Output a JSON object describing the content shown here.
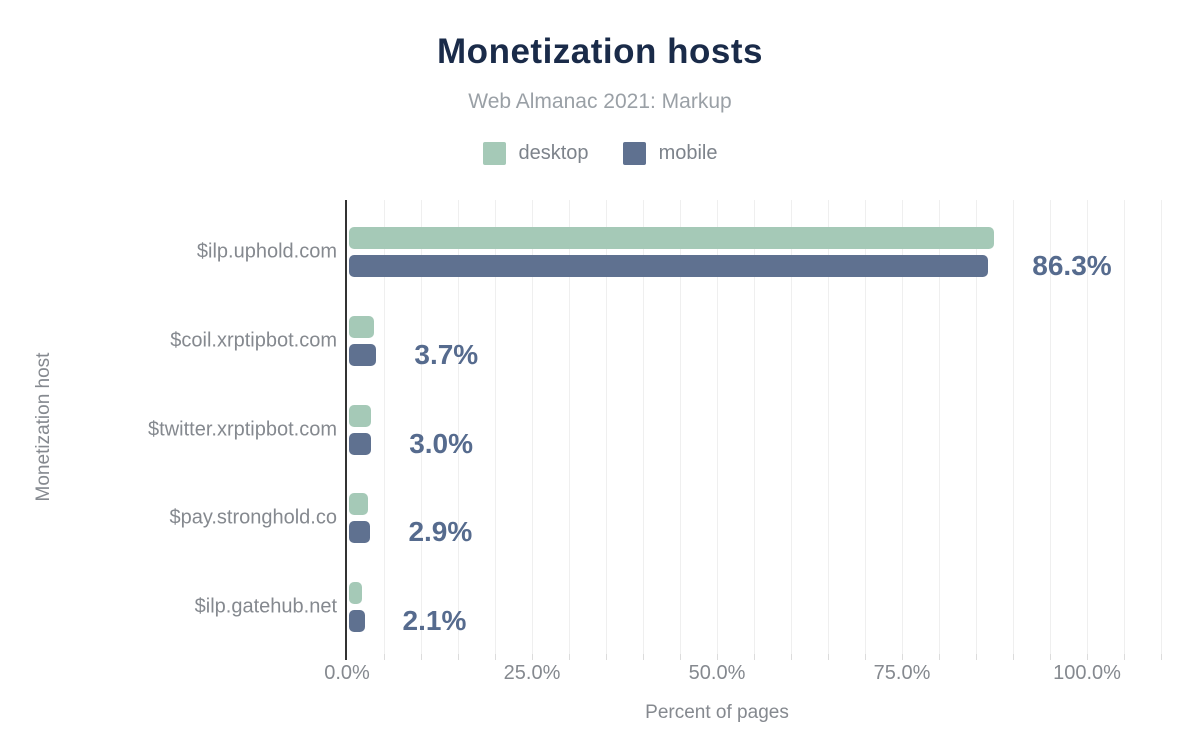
{
  "header": {
    "title": "Monetization hosts",
    "subtitle": "Web Almanac 2021: Markup"
  },
  "legend": {
    "items": [
      {
        "label": "desktop",
        "color": "#a5c9b7"
      },
      {
        "label": "mobile",
        "color": "#5f7190"
      }
    ]
  },
  "chart_data": {
    "type": "bar",
    "orientation": "horizontal",
    "title": "Monetization hosts",
    "subtitle": "Web Almanac 2021: Markup",
    "xlabel": "Percent of pages",
    "ylabel": "Monetization host",
    "categories": [
      "$ilp.uphold.com",
      "$coil.xrptipbot.com",
      "$twitter.xrptipbot.com",
      "$pay.stronghold.co",
      "$ilp.gatehub.net"
    ],
    "series": [
      {
        "name": "desktop",
        "color": "#a5c9b7",
        "values": [
          87.2,
          3.4,
          3.0,
          2.5,
          1.8
        ]
      },
      {
        "name": "mobile",
        "color": "#5f7190",
        "values": [
          86.3,
          3.7,
          3.0,
          2.9,
          2.1
        ]
      }
    ],
    "value_labels": {
      "series": "mobile",
      "texts": [
        "86.3%",
        "3.7%",
        "3.0%",
        "2.9%",
        "2.1%"
      ]
    },
    "x_ticks": [
      {
        "value": 0,
        "label": "0.0%"
      },
      {
        "value": 25,
        "label": "25.0%"
      },
      {
        "value": 50,
        "label": "50.0%"
      },
      {
        "value": 75,
        "label": "75.0%"
      },
      {
        "value": 100,
        "label": "100.0%"
      }
    ],
    "xlim": [
      0,
      110
    ],
    "grid": {
      "vertical_minor_step": 5,
      "horizontal": false
    },
    "legend_position": "top"
  },
  "colors": {
    "background": "#ffffff",
    "title": "#1a2b49",
    "subtitle": "#9aa0a6",
    "axis_text": "#85898f",
    "legend_text": "#7d838b",
    "value_label": "#566b8e",
    "gridline": "#efefef",
    "axis_line": "#333333"
  }
}
